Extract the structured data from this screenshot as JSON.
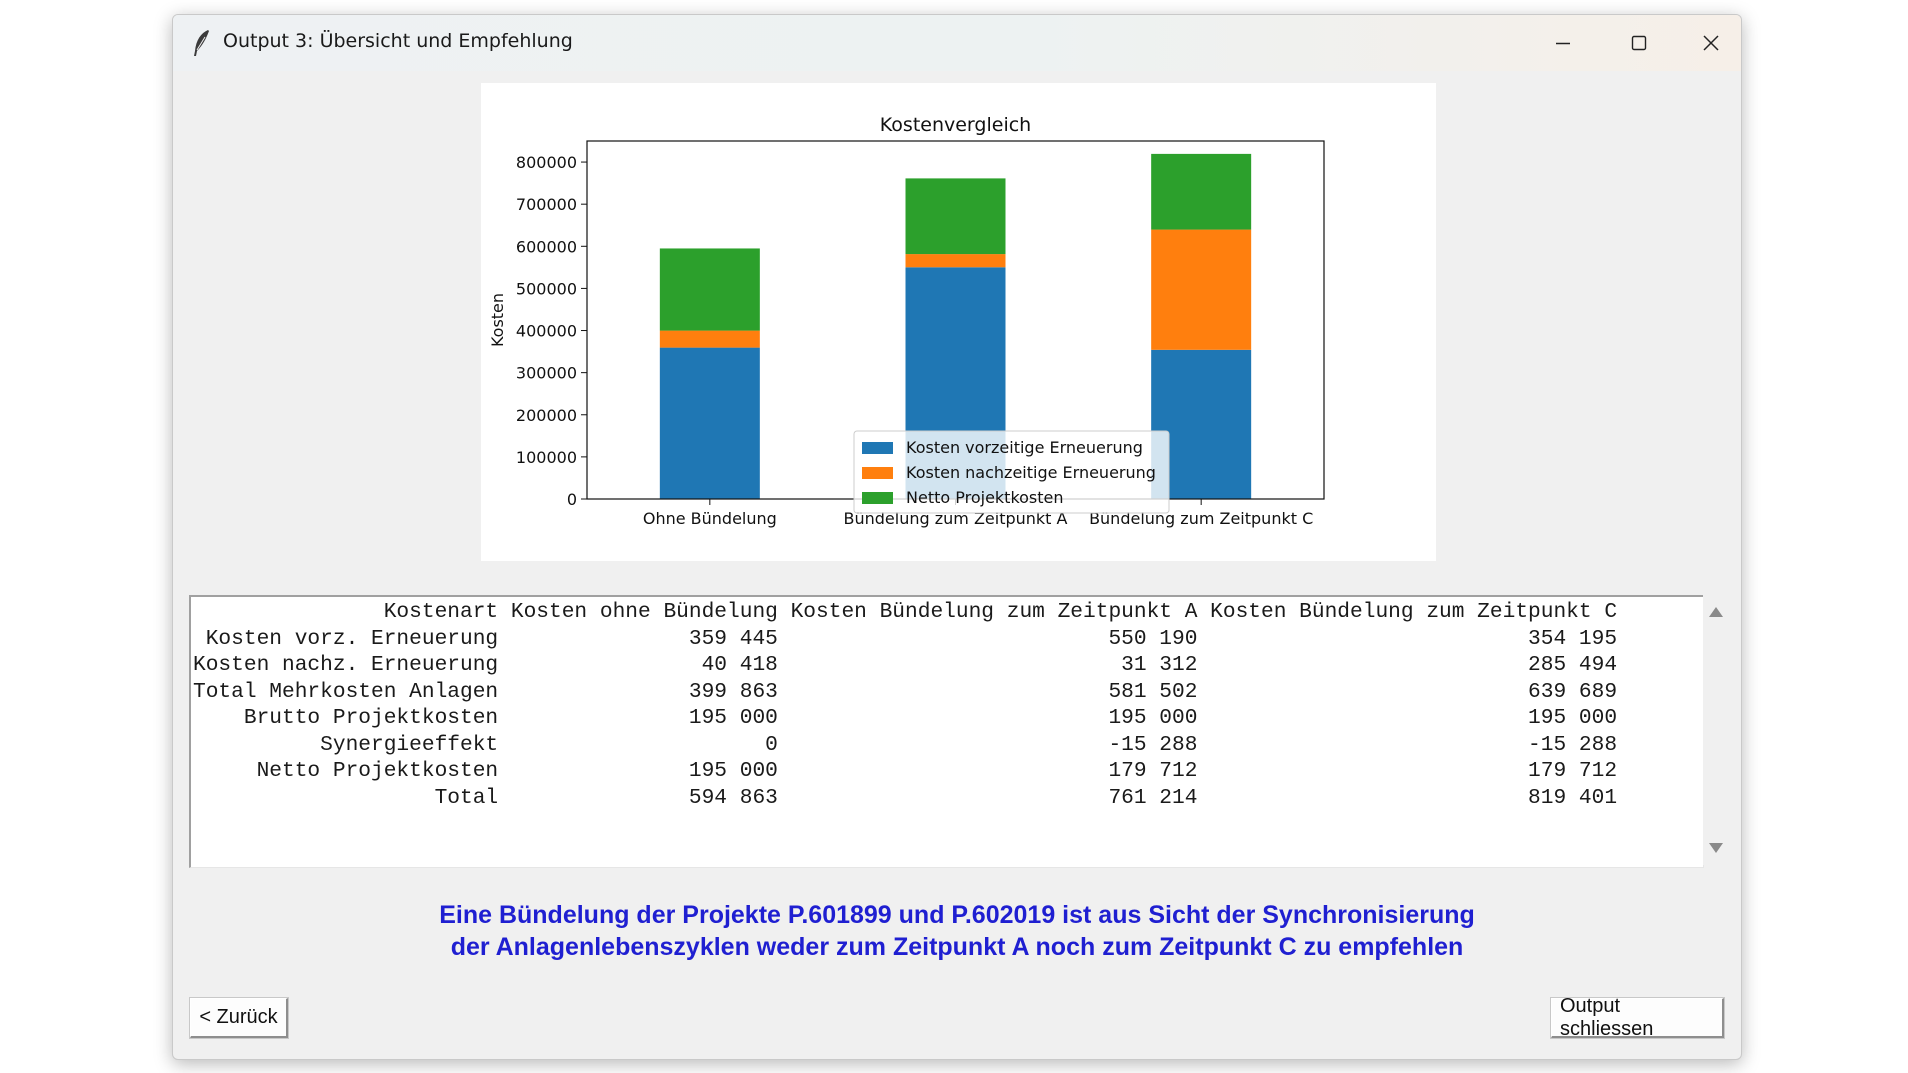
{
  "window": {
    "title": "Output 3: Übersicht und Empfehlung",
    "icon": "feather-icon",
    "controls": [
      "minimize-icon",
      "maximize-icon",
      "close-icon"
    ]
  },
  "chart_data": {
    "type": "bar",
    "stacked": true,
    "title": "Kostenvergleich",
    "xlabel": "",
    "ylabel": "Kosten",
    "ylim": [
      0,
      850000
    ],
    "yticks": [
      0,
      100000,
      200000,
      300000,
      400000,
      500000,
      600000,
      700000,
      800000
    ],
    "categories": [
      "Ohne Bündelung",
      "Bündelung zum Zeitpunkt A",
      "Bündelung zum Zeitpunkt C"
    ],
    "series": [
      {
        "name": "Kosten vorzeitige Erneuerung",
        "color": "#1f77b4",
        "values": [
          359445,
          550190,
          354195
        ]
      },
      {
        "name": "Kosten nachzeitige Erneuerung",
        "color": "#ff7f0e",
        "values": [
          40418,
          31312,
          285494
        ]
      },
      {
        "name": "Netto Projektkosten",
        "color": "#2ca02c",
        "values": [
          195000,
          179712,
          179712
        ]
      }
    ],
    "legend": "lower-center",
    "grid": false
  },
  "table": {
    "header": [
      "Kostenart",
      "Kosten ohne Bündelung",
      "Kosten Bündelung zum Zeitpunkt A",
      "Kosten Bündelung zum Zeitpunkt C"
    ],
    "rows": [
      [
        "Kosten vorz. Erneuerung",
        "359 445",
        "550 190",
        "354 195"
      ],
      [
        "Kosten nachz. Erneuerung",
        "40 418",
        "31 312",
        "285 494"
      ],
      [
        "Total Mehrkosten Anlagen",
        "399 863",
        "581 502",
        "639 689"
      ],
      [
        "Brutto Projektkosten",
        "195 000",
        "195 000",
        "195 000"
      ],
      [
        "Synergieeffekt",
        "0",
        "-15 288",
        "-15 288"
      ],
      [
        "Netto Projektkosten",
        "195 000",
        "179 712",
        "179 712"
      ],
      [
        "Total",
        "594 863",
        "761 214",
        "819 401"
      ]
    ]
  },
  "recommendation": {
    "line1": "Eine Bündelung der Projekte P.601899 und P.602019 ist aus Sicht der Synchronisierung",
    "line2": "der Anlagenlebenszyklen weder zum Zeitpunkt A noch zum Zeitpunkt C zu empfehlen",
    "color": "#1f1fd1"
  },
  "buttons": {
    "back_label": "< Zurück",
    "close_label": "Output schliessen"
  }
}
